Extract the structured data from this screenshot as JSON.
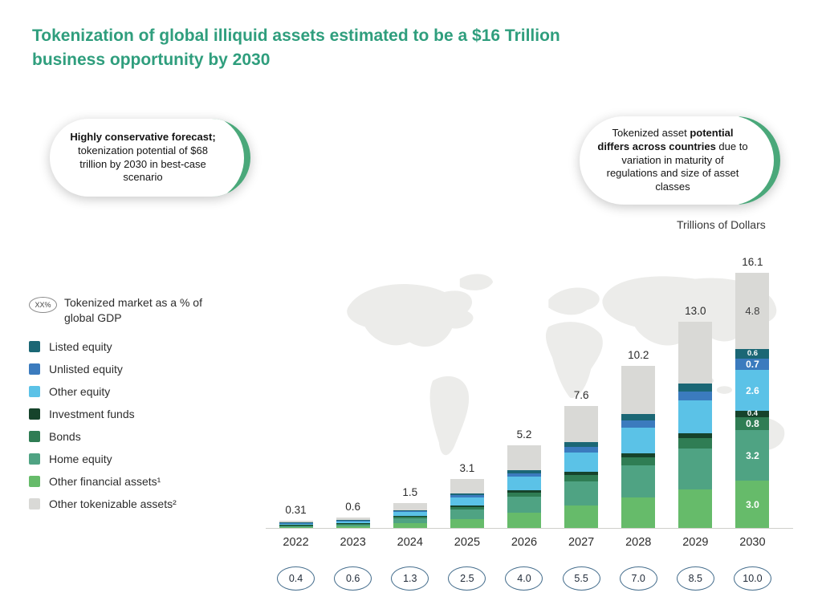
{
  "page": {
    "title": "Tokenization of global illiquid assets estimated to be a $16 Trillion business opportunity by 2030"
  },
  "callouts": {
    "left": {
      "bold": "Highly conservative forecast;",
      "rest": " tokenization potential of $68 trillion by 2030 in best-case scenario"
    },
    "right": {
      "pre": "Tokenized asset ",
      "bold": "potential differs across countries",
      "rest": " due to variation in maturity of regulations and size of asset classes"
    }
  },
  "chart_data": {
    "type": "bar",
    "stacked": true,
    "title": "Tokenization of global illiquid assets estimated to be a $16 Trillion business opportunity by 2030",
    "units_label": "Trillions of Dollars",
    "categories": [
      "2022",
      "2023",
      "2024",
      "2025",
      "2026",
      "2027",
      "2028",
      "2029",
      "2030"
    ],
    "totals": [
      0.31,
      0.6,
      1.5,
      3.1,
      5.2,
      7.6,
      10.2,
      13.0,
      16.1
    ],
    "total_labels": [
      "0.31",
      "0.6",
      "1.5",
      "3.1",
      "5.2",
      "7.6",
      "10.2",
      "13.0",
      "16.1"
    ],
    "ylim": [
      0,
      17
    ],
    "series": [
      {
        "name": "Other financial assets¹",
        "color": "#66bb6a",
        "values": [
          0.06,
          0.11,
          0.28,
          0.58,
          0.97,
          1.41,
          1.9,
          2.42,
          3.0
        ]
      },
      {
        "name": "Home equity",
        "color": "#4fa383",
        "values": [
          0.06,
          0.12,
          0.3,
          0.62,
          1.03,
          1.51,
          2.03,
          2.58,
          3.2
        ]
      },
      {
        "name": "Bonds",
        "color": "#2f7d54",
        "values": [
          0.02,
          0.03,
          0.08,
          0.15,
          0.26,
          0.38,
          0.51,
          0.65,
          0.8
        ]
      },
      {
        "name": "Investment funds",
        "color": "#16432b",
        "values": [
          0.01,
          0.02,
          0.04,
          0.08,
          0.13,
          0.19,
          0.26,
          0.32,
          0.4
        ]
      },
      {
        "name": "Other equity",
        "color": "#5bc2e7",
        "values": [
          0.05,
          0.1,
          0.24,
          0.5,
          0.84,
          1.22,
          1.64,
          2.09,
          2.6
        ]
      },
      {
        "name": "Unlisted equity",
        "color": "#3b7bbe",
        "values": [
          0.01,
          0.03,
          0.07,
          0.13,
          0.22,
          0.33,
          0.44,
          0.56,
          0.7
        ]
      },
      {
        "name": "Listed equity",
        "color": "#1b6775",
        "values": [
          0.01,
          0.02,
          0.06,
          0.11,
          0.19,
          0.28,
          0.38,
          0.48,
          0.6
        ]
      },
      {
        "name": "Other tokenizable assets²",
        "color": "#d9d9d6",
        "values": [
          0.09,
          0.17,
          0.43,
          0.93,
          1.56,
          2.28,
          3.04,
          3.9,
          4.8
        ]
      }
    ],
    "segment_labels": {
      "category": "2030",
      "values": [
        "3.0",
        "3.2",
        "0.8",
        "0.4",
        "2.6",
        "0.7",
        "0.6",
        "4.8"
      ]
    },
    "legend": [
      {
        "label": "Listed equity",
        "color": "#1b6775"
      },
      {
        "label": "Unlisted equity",
        "color": "#3b7bbe"
      },
      {
        "label": "Other equity",
        "color": "#5bc2e7"
      },
      {
        "label": "Investment funds",
        "color": "#16432b"
      },
      {
        "label": "Bonds",
        "color": "#2f7d54"
      },
      {
        "label": "Home equity",
        "color": "#4fa383"
      },
      {
        "label": "Other financial assets¹",
        "color": "#66bb6a"
      },
      {
        "label": "Other tokenizable assets²",
        "color": "#d9d9d6"
      }
    ],
    "legend_note": {
      "badge": "XX%",
      "label": "Tokenized market as a % of global GDP"
    },
    "gdp_percent_labels": [
      "0.4",
      "0.6",
      "1.3",
      "2.5",
      "4.0",
      "5.5",
      "7.0",
      "8.5",
      "10.0"
    ]
  }
}
